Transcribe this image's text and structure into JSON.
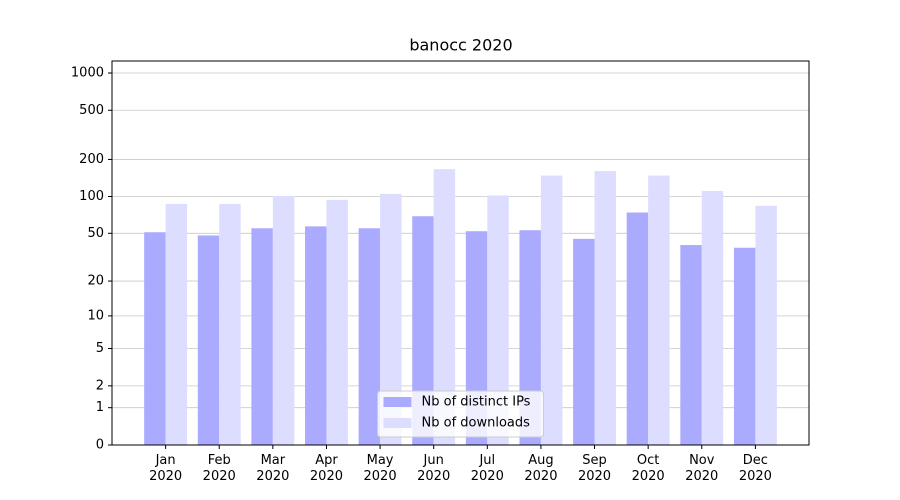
{
  "chart_data": {
    "type": "bar",
    "title": "banocc 2020",
    "categories": [
      "Jan\n2020",
      "Feb\n2020",
      "Mar\n2020",
      "Apr\n2020",
      "May\n2020",
      "Jun\n2020",
      "Jul\n2020",
      "Aug\n2020",
      "Sep\n2020",
      "Oct\n2020",
      "Nov\n2020",
      "Dec\n2020"
    ],
    "series": [
      {
        "name": "Nb of distinct IPs",
        "color": "#aaaaff",
        "values": [
          51,
          48,
          55,
          57,
          55,
          69,
          52,
          53,
          45,
          74,
          40,
          38
        ]
      },
      {
        "name": "Nb of downloads",
        "color": "#ddddff",
        "values": [
          87,
          87,
          101,
          94,
          105,
          167,
          102,
          148,
          161,
          148,
          111,
          84
        ]
      }
    ],
    "yscale": "log1p",
    "ylim": [
      0,
      1250
    ],
    "yticks": [
      0,
      1,
      2,
      5,
      10,
      20,
      50,
      100,
      200,
      500,
      1000
    ],
    "grid": true,
    "legend": "lower center"
  }
}
